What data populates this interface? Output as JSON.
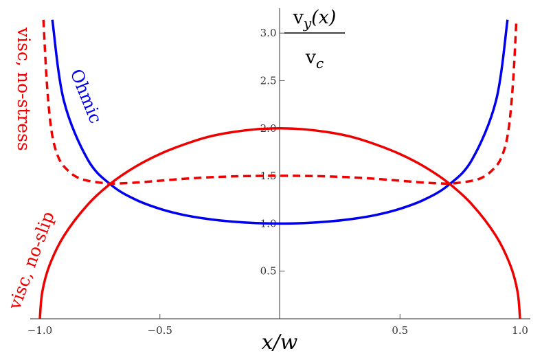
{
  "chart_data": {
    "type": "line",
    "xlabel": "x/w",
    "ylabel": {
      "numerator": "v_y(x)",
      "denominator": "v_c"
    },
    "xlim": [
      -1.0,
      1.0
    ],
    "ylim": [
      0.0,
      3.2
    ],
    "grid": false,
    "x_ticks": [
      -1.0,
      -0.5,
      0.5,
      1.0
    ],
    "x_tick_labels": [
      "−1.0",
      "−0.5",
      "0.5",
      "1.0"
    ],
    "y_ticks": [
      0.5,
      1.0,
      1.5,
      2.0,
      2.5,
      3.0
    ],
    "y_tick_labels": [
      "0.5",
      "1.0",
      "1.5",
      "2.0",
      "2.5",
      "3.0"
    ],
    "series": [
      {
        "name": "Ohmic",
        "color": "#0000ee",
        "dash": "solid",
        "x": [
          -0.948,
          -0.9,
          -0.8,
          -0.7,
          -0.6,
          -0.5,
          -0.4,
          -0.3,
          -0.2,
          -0.1,
          0.0,
          0.1,
          0.2,
          0.3,
          0.4,
          0.5,
          0.6,
          0.7,
          0.8,
          0.9,
          0.948
        ],
        "y": [
          3.14,
          2.29,
          1.67,
          1.4,
          1.25,
          1.155,
          1.09,
          1.048,
          1.021,
          1.005,
          1.0,
          1.005,
          1.021,
          1.048,
          1.09,
          1.155,
          1.25,
          1.4,
          1.67,
          2.29,
          3.14
        ]
      },
      {
        "name": "visc, no-slip",
        "color": "#ee0000",
        "dash": "solid",
        "x": [
          -1.0,
          -0.99,
          -0.96,
          -0.9,
          -0.8,
          -0.7,
          -0.6,
          -0.5,
          -0.4,
          -0.3,
          -0.2,
          -0.1,
          0.0,
          0.1,
          0.2,
          0.3,
          0.4,
          0.5,
          0.6,
          0.7,
          0.8,
          0.9,
          0.96,
          0.99,
          1.0
        ],
        "y": [
          0.0,
          0.28,
          0.56,
          0.87,
          1.2,
          1.43,
          1.6,
          1.73,
          1.83,
          1.91,
          1.96,
          1.99,
          2.0,
          1.99,
          1.96,
          1.91,
          1.83,
          1.73,
          1.6,
          1.43,
          1.2,
          0.87,
          0.56,
          0.28,
          0.0
        ]
      },
      {
        "name": "visc, no-stress",
        "color": "#ee0000",
        "dash": "dashed",
        "x": [
          -0.985,
          -0.97,
          -0.95,
          -0.92,
          -0.88,
          -0.84,
          -0.8,
          -0.75,
          -0.7,
          -0.6,
          -0.5,
          -0.4,
          -0.3,
          -0.2,
          -0.1,
          0.0,
          0.1,
          0.2,
          0.3,
          0.4,
          0.5,
          0.6,
          0.7,
          0.75,
          0.8,
          0.84,
          0.88,
          0.92,
          0.95,
          0.97,
          0.985
        ],
        "y": [
          3.14,
          2.45,
          1.95,
          1.68,
          1.55,
          1.48,
          1.45,
          1.43,
          1.42,
          1.43,
          1.45,
          1.47,
          1.485,
          1.495,
          1.5,
          1.502,
          1.5,
          1.495,
          1.485,
          1.47,
          1.45,
          1.43,
          1.42,
          1.43,
          1.45,
          1.48,
          1.55,
          1.68,
          1.95,
          2.45,
          3.14
        ]
      }
    ]
  }
}
